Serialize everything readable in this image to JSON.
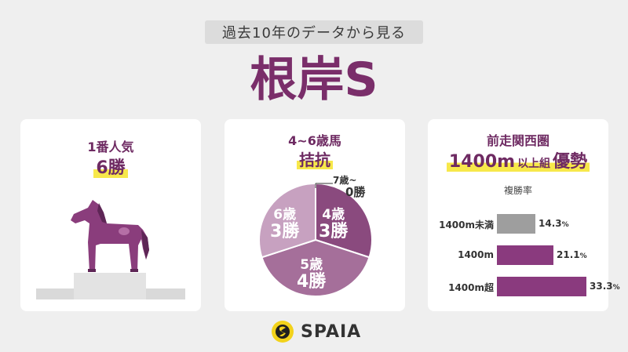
{
  "header": {
    "subtitle": "過去10年のデータから見る",
    "title": "根岸S"
  },
  "card1": {
    "line1": "1番人気",
    "line2": "6勝"
  },
  "card2": {
    "line1": "4~6歳馬",
    "line2": "拮抗",
    "callout_line1": "7歳~",
    "callout_line2": "0勝",
    "slices": [
      {
        "label_age": "4歳",
        "label_wins": "3勝",
        "value": 3,
        "color": "#8a4a7e"
      },
      {
        "label_age": "5歳",
        "label_wins": "4勝",
        "value": 4,
        "color": "#a56f9a"
      },
      {
        "label_age": "6歳",
        "label_wins": "3勝",
        "value": 3,
        "color": "#c7a1c0"
      }
    ]
  },
  "card3": {
    "line1": "前走関西圏",
    "line2a": "1400m",
    "line2b": "以上組",
    "line2c": "優勢",
    "metric": "複勝率",
    "bars": [
      {
        "label": "1400m未満",
        "value": 14.3,
        "display": "14.3",
        "unit": "%",
        "color": "#9e9e9e"
      },
      {
        "label": "1400m",
        "value": 21.1,
        "display": "21.1",
        "unit": "%",
        "color": "#8a3a7e"
      },
      {
        "label": "1400m超",
        "value": 33.3,
        "display": "33.3",
        "unit": "%",
        "color": "#8a3a7e"
      }
    ]
  },
  "footer": {
    "brand": "SPAIA"
  },
  "colors": {
    "accent": "#7a2e6a",
    "highlight": "#f7e84a",
    "background": "#efefef"
  }
}
